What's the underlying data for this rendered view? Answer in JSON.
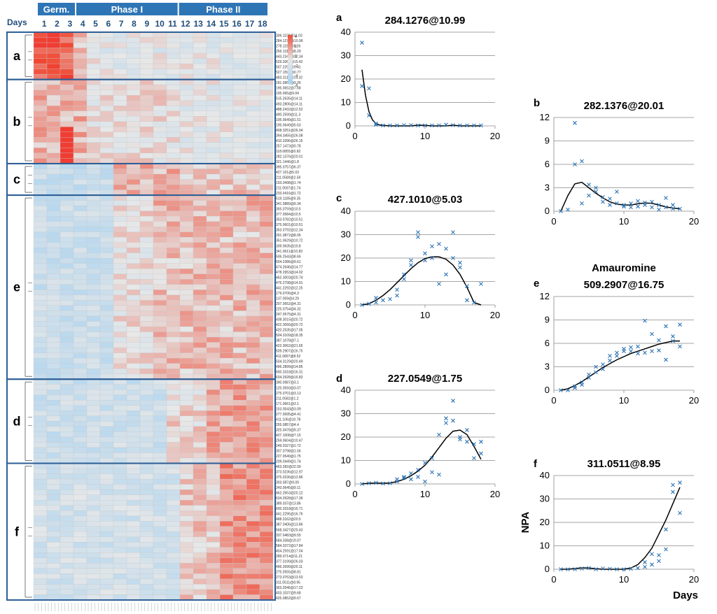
{
  "heatmap": {
    "days_label": "Days",
    "phase_headers": [
      "Germ.",
      "Phase I",
      "Phase II"
    ],
    "days": [
      "1",
      "2",
      "3",
      "4",
      "5",
      "6",
      "7",
      "8",
      "9",
      "10",
      "11",
      "12",
      "13",
      "14",
      "15",
      "16",
      "17",
      "18"
    ],
    "scale_ticks": [
      "4",
      "2",
      "0",
      "-2",
      "-4",
      "-6"
    ],
    "clusters": [
      {
        "label": "a",
        "rows": [
          "306.1108@11.03",
          "284.1276@10.99",
          "278.1151@8.26",
          "256.1318@8.29",
          "443.2349@12.34",
          "529.2066@15.42",
          "507.229@15.41",
          "527.1591@0.77",
          "483.3119@24.32"
        ]
      },
      {
        "label": "b",
        "rows": [
          "181.0859@9.26",
          "195.0652@7.68",
          "195.065@9.04",
          "515.2635@14.11",
          "493.2806@14.11",
          "488.2432@12.52",
          "490.2599@11.3",
          "195.0649@1.51",
          "195.0649@5.63",
          "408.3251@26.04",
          "394.3455@26.08",
          "410.3396@26.15",
          "257.1473@0.78",
          "118.0855@0.82",
          "282.1376@20.01",
          "321.1446@1.8"
        ]
      },
      {
        "label": "c",
        "rows": [
          "395.0757@6.37",
          "427.101@5.03",
          "211.0589@2.59",
          "193.0498@1.74",
          "211.0597@1.74",
          "233.0416@1.72"
        ]
      },
      {
        "label": "e",
        "rows": [
          "519.1185@9.35",
          "341.0889@9.34",
          "355.0759@10.5",
          "377.0584@10.5",
          "353.0782@10.51",
          "375.0601@10.51",
          "353.0792@12.34",
          "291.0872@8.05",
          "351.0629@10.72",
          "339.0635@10.8",
          "341.0611@10.83",
          "506.2543@8.66",
          "504.2386@9.61",
          "474.2646@14.77",
          "478.2953@14.02",
          "462.3003@20.74",
          "476.2798@14.91",
          "441.2292@12.25",
          "179.0706@4.3",
          "137.059@4.29",
          "207.0652@4.31",
          "225.0754@4.32",
          "247.0575@4.31",
          "438.3015@20.72",
          "422.3066@20.72",
          "420.2535@17.05",
          "504.3109@18.35",
          "387.1078@7.1",
          "422.3062@21.65",
          "509.2907@16.75",
          "411.0897@8.52",
          "504.3129@20.49",
          "496.2899@14.85",
          "600.3318@16.31",
          "634.2928@16.83"
        ]
      },
      {
        "label": "d",
        "rows": [
          "390.0987@3.1",
          "125.0593@3.07",
          "275.0701@3.13",
          "211.0582@1.2",
          "171.0661@3.1",
          "153.0543@3.09",
          "277.0695@4.41",
          "411.106@10.78",
          "255.0857@4.4",
          "325.0478@9.37",
          "427.1008@7.15",
          "259.0604@10.47",
          "249.0327@1.72",
          "307.0798@1.56",
          "227.0549@1.75",
          "209.0449@1.74"
        ]
      },
      {
        "label": "f",
        "rows": [
          "463.282@22.09",
          "373.0236@12.97",
          "375.0236@12.86",
          "303.087@9.09",
          "243.0645@9.11",
          "462.2653@20.12",
          "634.2928@17.39",
          "389.037@13.86",
          "600.3318@15.71",
          "441.2295@16.76",
          "488.3162@20.5",
          "387.0406@13.86",
          "568.3427@20.43",
          "337.0483@9.55",
          "584.338@19.07",
          "584.3372@17.84",
          "454.2591@17.04",
          "289.0714@11.21",
          "377.3199@26.03",
          "496.2699@20.11",
          "275.0555@8.81",
          "273.0763@13.53",
          "311.0511@8.95",
          "363.2046@17.23",
          "403.1037@9.68",
          "425.0852@9.67"
        ]
      }
    ]
  },
  "chart_data": [
    {
      "panel": "a",
      "type": "scatter",
      "title": "284.1276@10.99",
      "xlim": [
        0,
        20
      ],
      "ylim": [
        0,
        40
      ],
      "xticks": [
        "0",
        "10",
        "20"
      ],
      "yticks": [
        "0",
        "10",
        "20",
        "30",
        "40"
      ],
      "x": [
        1,
        1,
        2,
        2,
        3,
        3,
        4,
        5,
        6,
        7,
        8,
        9,
        10,
        11,
        12,
        13,
        14,
        15,
        16,
        17,
        18
      ],
      "y": [
        35.5,
        17,
        16,
        4.5,
        1,
        0.5,
        0.2,
        0.2,
        0.2,
        0.3,
        0.3,
        0.2,
        0.2,
        0.2,
        0.2,
        0.5,
        0.3,
        0.2,
        0.2,
        0.2,
        0.2
      ],
      "fit_x": [
        1,
        1.5,
        2,
        2.5,
        3,
        3.5,
        4,
        5,
        6,
        7,
        8,
        9,
        10,
        11,
        12,
        13,
        14,
        15,
        16,
        17,
        18
      ],
      "fit_y": [
        24,
        13,
        6,
        2.5,
        1,
        0.4,
        0.2,
        0,
        0,
        0,
        0,
        0.3,
        0.2,
        0,
        0,
        0,
        0.3,
        0,
        0,
        0,
        0
      ]
    },
    {
      "panel": "b",
      "type": "scatter",
      "title": "282.1376@20.01",
      "xlim": [
        0,
        20
      ],
      "ylim": [
        0,
        12
      ],
      "xticks": [
        "0",
        "10",
        "20"
      ],
      "yticks": [
        "0",
        "3",
        "6",
        "9",
        "12"
      ],
      "x": [
        1,
        2,
        3,
        3,
        4,
        4,
        5,
        5,
        6,
        6,
        7,
        7,
        8,
        8,
        9,
        9,
        10,
        10,
        11,
        11,
        12,
        12,
        13,
        13,
        14,
        14,
        15,
        15,
        16,
        16,
        17,
        17,
        18
      ],
      "y": [
        0,
        0.2,
        11.3,
        6,
        6.4,
        1,
        3.4,
        2,
        2.5,
        3,
        1.8,
        1.2,
        1.6,
        0.8,
        2.5,
        1,
        0.8,
        0.6,
        1.0,
        0.5,
        1.3,
        0.6,
        1.1,
        0.8,
        1.2,
        0.5,
        0.8,
        0.2,
        1.7,
        0.5,
        0.8,
        0.3,
        0.3
      ],
      "fit_x": [
        1,
        2,
        3,
        4,
        5,
        6,
        7,
        8,
        9,
        10,
        11,
        12,
        13,
        14,
        15,
        16,
        17,
        18
      ],
      "fit_y": [
        0,
        2.0,
        3.5,
        3.7,
        3.0,
        2.3,
        1.7,
        1.2,
        0.9,
        0.8,
        0.8,
        0.95,
        1.05,
        1.0,
        0.8,
        0.55,
        0.4,
        0.3
      ]
    },
    {
      "panel": "c",
      "type": "scatter",
      "title": "427.1010@5.03",
      "xlim": [
        0,
        20
      ],
      "ylim": [
        0,
        40
      ],
      "xticks": [
        "0",
        "10",
        "20"
      ],
      "yticks": [
        "0",
        "10",
        "20",
        "30",
        "40"
      ],
      "x": [
        1,
        2,
        3,
        3,
        4,
        5,
        6,
        6,
        7,
        7,
        8,
        8,
        9,
        9,
        10,
        10,
        11,
        11,
        12,
        12,
        13,
        13,
        14,
        14,
        15,
        15,
        16,
        16,
        17,
        18
      ],
      "y": [
        0,
        0.5,
        3,
        1,
        2,
        2.5,
        4,
        6.5,
        13,
        11,
        19,
        17,
        31,
        29,
        22,
        19,
        25,
        20,
        26,
        9,
        24,
        13,
        31,
        20,
        18,
        16,
        2,
        8,
        1,
        9
      ],
      "fit_x": [
        1,
        2,
        3,
        4,
        5,
        6,
        7,
        8,
        9,
        10,
        11,
        12,
        13,
        14,
        15,
        16,
        17,
        18
      ],
      "fit_y": [
        0,
        0.5,
        2,
        4,
        6.5,
        9.5,
        12.5,
        15.5,
        18,
        19.8,
        20.5,
        20.5,
        19.5,
        17,
        13,
        7.5,
        1,
        0
      ]
    },
    {
      "panel": "d",
      "type": "scatter",
      "title": "227.0549@1.75",
      "xlim": [
        0,
        20
      ],
      "ylim": [
        0,
        40
      ],
      "xticks": [
        "0",
        "10",
        "20"
      ],
      "yticks": [
        "0",
        "10",
        "20",
        "30",
        "40"
      ],
      "x": [
        1,
        2,
        3,
        4,
        5,
        6,
        6,
        7,
        7,
        8,
        8,
        9,
        9,
        10,
        10,
        11,
        11,
        12,
        12,
        13,
        13,
        14,
        14,
        15,
        15,
        16,
        16,
        17,
        17,
        18,
        18
      ],
      "y": [
        0,
        0.3,
        0.5,
        0.2,
        0.3,
        2,
        1,
        3,
        2.5,
        4.5,
        2,
        6,
        3,
        9,
        1,
        11,
        5,
        21,
        4,
        26,
        28,
        35.5,
        27,
        20,
        19,
        23,
        18,
        11,
        17,
        13,
        18
      ],
      "fit_x": [
        1,
        2,
        3,
        4,
        5,
        6,
        7,
        8,
        9,
        10,
        11,
        12,
        13,
        14,
        15,
        16,
        17,
        18
      ],
      "fit_y": [
        0,
        0.3,
        0.4,
        0.3,
        0.4,
        1,
        2,
        3.5,
        5.5,
        8,
        11.5,
        15.5,
        19.5,
        22.5,
        23,
        21,
        16,
        10.5
      ]
    },
    {
      "panel": "e",
      "type": "scatter",
      "title": "509.2907@16.75",
      "subtitle": "Amauromine",
      "xlim": [
        0,
        20
      ],
      "ylim": [
        0,
        12
      ],
      "xticks": [
        "0",
        "10",
        "20"
      ],
      "yticks": [
        "0",
        "3",
        "6",
        "9",
        "12"
      ],
      "x": [
        1,
        2,
        3,
        3,
        4,
        4,
        5,
        5,
        6,
        6,
        7,
        7,
        8,
        8,
        9,
        9,
        10,
        10,
        11,
        11,
        12,
        12,
        13,
        13,
        14,
        14,
        15,
        15,
        16,
        16,
        17,
        17,
        18,
        18
      ],
      "y": [
        0,
        0,
        0.3,
        0.5,
        1,
        0.7,
        1.6,
        2,
        2.3,
        3,
        2.7,
        3.3,
        4.4,
        3.8,
        4.8,
        4.4,
        5.3,
        5,
        5.5,
        5,
        5.6,
        4.7,
        8.9,
        4.8,
        7.2,
        5,
        6.4,
        5.1,
        8.2,
        3.9,
        6.9,
        6.3,
        8.4,
        5.6
      ],
      "fit_x": [
        1,
        2,
        3,
        4,
        5,
        6,
        7,
        8,
        9,
        10,
        11,
        12,
        13,
        14,
        15,
        16,
        17,
        18
      ],
      "fit_y": [
        0,
        0.2,
        0.6,
        1.1,
        1.7,
        2.3,
        2.9,
        3.4,
        3.9,
        4.3,
        4.7,
        5.0,
        5.3,
        5.6,
        5.9,
        6.1,
        6.3,
        6.3
      ]
    },
    {
      "panel": "f",
      "type": "scatter",
      "title": "311.0511@8.95",
      "xlim": [
        0,
        20
      ],
      "ylim": [
        0,
        40
      ],
      "xticks": [
        "0",
        "10",
        "20"
      ],
      "yticks": [
        "0",
        "10",
        "20",
        "30",
        "40"
      ],
      "ylabel": "NPA",
      "xlabel": "Days",
      "x": [
        1,
        2,
        3,
        4,
        5,
        6,
        7,
        8,
        9,
        10,
        11,
        12,
        13,
        13,
        14,
        14,
        15,
        15,
        16,
        16,
        17,
        17,
        18,
        18
      ],
      "y": [
        0,
        0,
        0,
        0.3,
        0.5,
        0,
        0.3,
        0.2,
        0,
        0,
        0.2,
        0.5,
        3,
        1,
        6.5,
        2,
        6,
        3.5,
        17,
        8.5,
        33,
        36,
        37,
        24
      ],
      "fit_x": [
        1,
        2,
        3,
        4,
        5,
        6,
        7,
        8,
        9,
        10,
        11,
        12,
        13,
        14,
        15,
        16,
        17,
        18
      ],
      "fit_y": [
        0,
        0,
        0.3,
        0.6,
        0.5,
        0.2,
        0,
        0,
        0,
        0,
        0.5,
        2,
        5,
        9,
        15,
        21,
        28,
        35
      ]
    }
  ]
}
